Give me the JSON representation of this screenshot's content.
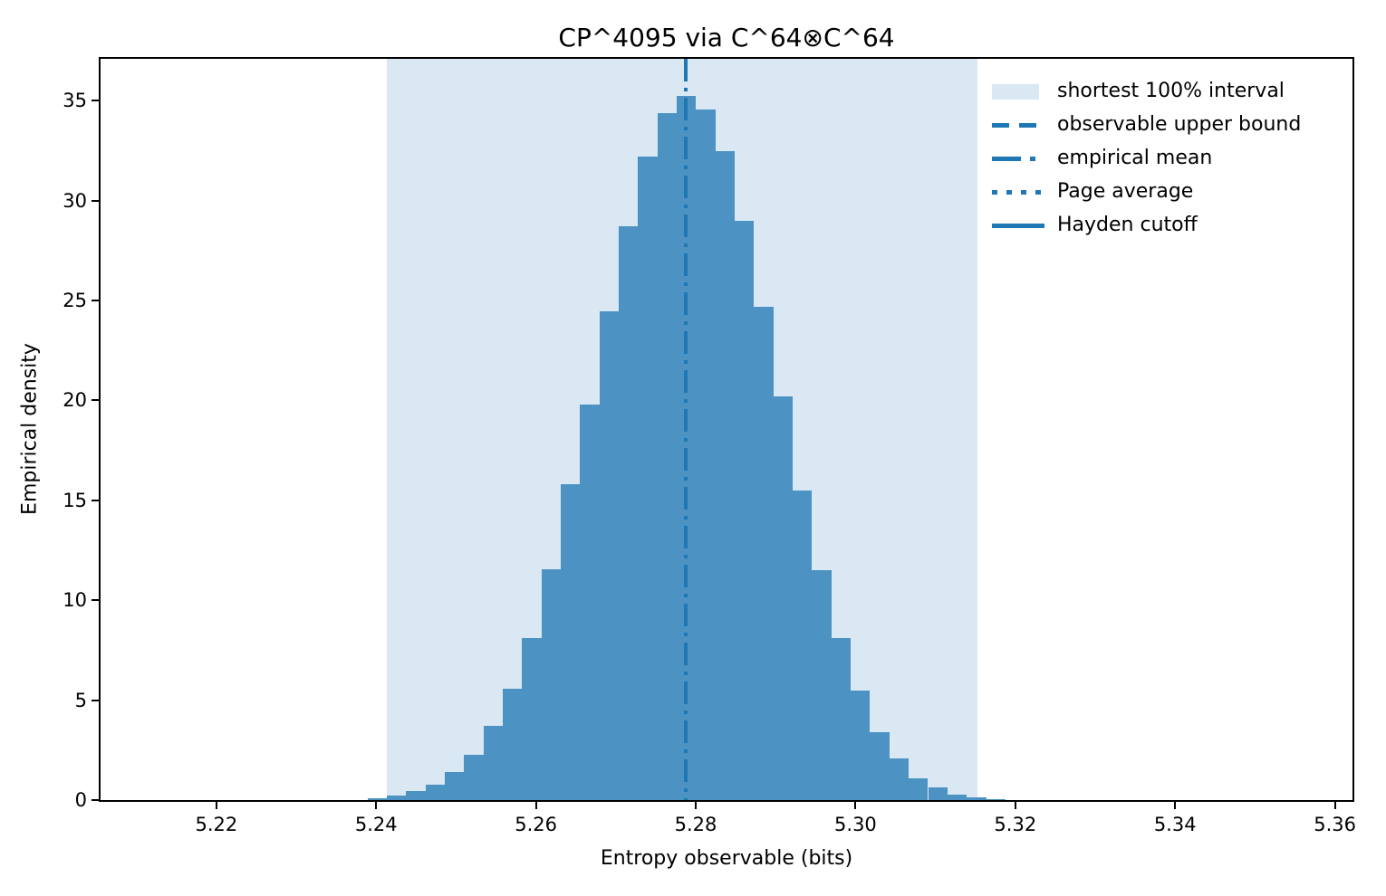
{
  "chart_data": {
    "type": "bar",
    "subtype": "histogram-density",
    "title": "CP^4095 via C^64⊗C^64",
    "xlabel": "Entropy observable (bits)",
    "ylabel": "Empirical density",
    "xlim": [
      5.2055,
      5.3622
    ],
    "ylim": [
      0,
      37.1
    ],
    "grid": false,
    "x_tick_values": [
      5.22,
      5.24,
      5.26,
      5.28,
      5.3,
      5.32,
      5.34,
      5.36
    ],
    "x_tick_labels": [
      "5.22",
      "5.24",
      "5.26",
      "5.28",
      "5.30",
      "5.32",
      "5.34",
      "5.36"
    ],
    "y_tick_values": [
      0,
      5,
      10,
      15,
      20,
      25,
      30,
      35
    ],
    "y_tick_labels": [
      "0",
      "5",
      "10",
      "15",
      "20",
      "25",
      "30",
      "35"
    ],
    "histogram": {
      "bin_start": 5.2389,
      "bin_width": 0.00242,
      "densities": [
        0.1,
        0.23,
        0.45,
        0.76,
        1.39,
        2.27,
        3.7,
        5.55,
        8.1,
        11.55,
        15.8,
        19.8,
        24.45,
        28.7,
        32.2,
        34.4,
        35.25,
        34.55,
        32.5,
        29.0,
        24.7,
        20.2,
        15.5,
        11.5,
        8.1,
        5.5,
        3.4,
        2.1,
        1.1,
        0.63,
        0.29,
        0.15,
        0.06
      ]
    },
    "shaded_interval": {
      "label": "shortest 100% interval",
      "from": 5.2413,
      "to": 5.3153
    },
    "vlines": [
      {
        "label": "empirical mean",
        "x": 5.2787,
        "style": "dashdot"
      }
    ],
    "legend_position": "upper right",
    "legend": [
      {
        "label": "shortest 100% interval",
        "swatch": "patch"
      },
      {
        "label": "observable upper bound",
        "swatch": "dashed"
      },
      {
        "label": "empirical mean",
        "swatch": "dashdot"
      },
      {
        "label": "Page average",
        "swatch": "dotted"
      },
      {
        "label": "Hayden cutoff",
        "swatch": "solid"
      }
    ],
    "colors": {
      "bar": "#4c92c3",
      "shade": "#d9e8f3",
      "line": "#1f77b4",
      "text": "#000000"
    }
  }
}
